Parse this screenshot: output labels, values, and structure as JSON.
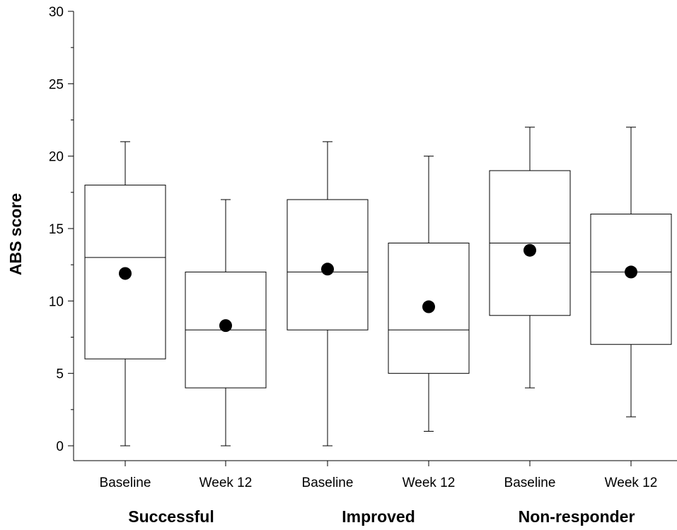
{
  "chart_data": {
    "type": "box",
    "ylabel": "ABS score",
    "ylim": [
      0,
      30
    ],
    "yticks": [
      0,
      5,
      10,
      15,
      20,
      25,
      30
    ],
    "grid": false,
    "groups": [
      "Successful",
      "Improved",
      "Non-responder"
    ],
    "categories": [
      "Baseline",
      "Week 12",
      "Baseline",
      "Week 12",
      "Baseline",
      "Week 12"
    ],
    "boxes": [
      {
        "group": "Successful",
        "label": "Baseline",
        "min": 0,
        "q1": 6,
        "median": 13,
        "q3": 18,
        "max": 21,
        "mean": 11.9
      },
      {
        "group": "Successful",
        "label": "Week 12",
        "min": 0,
        "q1": 4,
        "median": 8,
        "q3": 12,
        "max": 17,
        "mean": 8.3
      },
      {
        "group": "Improved",
        "label": "Baseline",
        "min": 0,
        "q1": 8,
        "median": 12,
        "q3": 17,
        "max": 21,
        "mean": 12.2
      },
      {
        "group": "Improved",
        "label": "Week 12",
        "min": 1,
        "q1": 5,
        "median": 8,
        "q3": 14,
        "max": 20,
        "mean": 9.6
      },
      {
        "group": "Non-responder",
        "label": "Baseline",
        "min": 4,
        "q1": 9,
        "median": 14,
        "q3": 19,
        "max": 22,
        "mean": 13.5
      },
      {
        "group": "Non-responder",
        "label": "Week 12",
        "min": 2,
        "q1": 7,
        "median": 12,
        "q3": 16,
        "max": 22,
        "mean": 12.0
      }
    ]
  }
}
